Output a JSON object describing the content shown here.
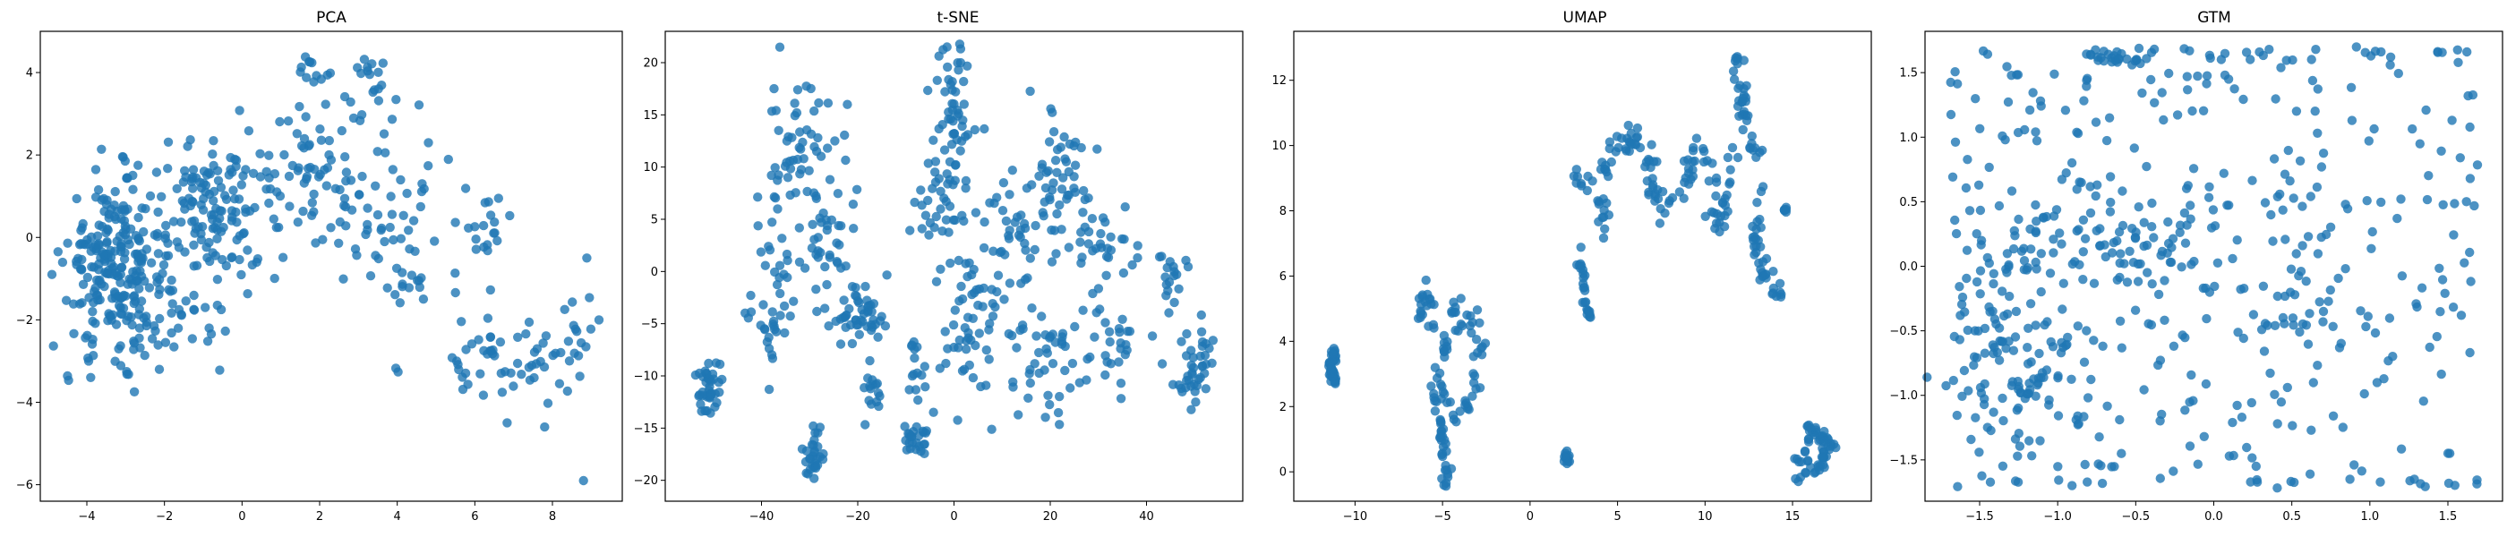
{
  "chart_data": [
    {
      "type": "scatter",
      "title": "PCA",
      "color": "#1f77b4",
      "xlim": [
        -5.2,
        9.8
      ],
      "ylim": [
        -6.4,
        5.0
      ],
      "xticks": [
        -4,
        -2,
        0,
        2,
        4,
        6,
        8
      ],
      "yticks": [
        -6,
        -4,
        -2,
        0,
        2,
        4
      ],
      "clusters": [
        {
          "cx": -3.3,
          "cy": -0.6,
          "sx": 0.6,
          "sy": 1.0,
          "n": 220
        },
        {
          "cx": -0.8,
          "cy": 0.6,
          "sx": 0.8,
          "sy": 0.8,
          "n": 120
        },
        {
          "cx": 2.0,
          "cy": 1.6,
          "sx": 1.3,
          "sy": 1.0,
          "n": 110
        },
        {
          "cx": -2.2,
          "cy": -1.9,
          "sx": 1.0,
          "sy": 0.6,
          "n": 60
        },
        {
          "cx": 3.3,
          "cy": 3.8,
          "sx": 0.3,
          "sy": 0.4,
          "n": 14
        },
        {
          "cx": 1.8,
          "cy": 4.2,
          "sx": 0.25,
          "sy": 0.3,
          "n": 10
        },
        {
          "cx": 6.2,
          "cy": 0.2,
          "sx": 0.4,
          "sy": 0.5,
          "n": 20
        },
        {
          "cx": 4.0,
          "cy": -0.5,
          "sx": 0.7,
          "sy": 0.9,
          "n": 40
        },
        {
          "cx": 6.8,
          "cy": -3.0,
          "sx": 1.1,
          "sy": 0.5,
          "n": 60
        },
        {
          "cx": 8.8,
          "cy": -1.8,
          "sx": 0.4,
          "sy": 0.8,
          "n": 10
        }
      ],
      "points": [
        [
          8.8,
          -5.9
        ],
        [
          7.8,
          -4.6
        ],
        [
          -4.9,
          -0.9
        ],
        [
          -3.9,
          -3.4
        ],
        [
          9.2,
          -2.0
        ]
      ]
    },
    {
      "type": "scatter",
      "title": "t-SNE",
      "color": "#1f77b4",
      "xlim": [
        -60,
        60
      ],
      "ylim": [
        -22,
        23
      ],
      "xticks": [
        -40,
        -20,
        0,
        20,
        40
      ],
      "yticks": [
        -20,
        -15,
        -10,
        -5,
        0,
        5,
        10,
        15,
        20
      ],
      "clusters": [
        {
          "cx": -51,
          "cy": -11,
          "sx": 1.2,
          "sy": 1.3,
          "n": 40
        },
        {
          "cx": -37,
          "cy": -2,
          "sx": 2.2,
          "sy": 4.0,
          "n": 45
        },
        {
          "cx": -32,
          "cy": 12,
          "sx": 4.0,
          "sy": 3.0,
          "n": 55
        },
        {
          "cx": -26,
          "cy": 2,
          "sx": 3.0,
          "sy": 4.0,
          "n": 40
        },
        {
          "cx": -29,
          "cy": -17.5,
          "sx": 1.0,
          "sy": 1.3,
          "n": 30
        },
        {
          "cx": -20,
          "cy": -4,
          "sx": 3.0,
          "sy": 1.5,
          "n": 45
        },
        {
          "cx": -17,
          "cy": -11,
          "sx": 1.0,
          "sy": 1.5,
          "n": 15
        },
        {
          "cx": -8,
          "cy": -9,
          "sx": 1.0,
          "sy": 2.0,
          "n": 15
        },
        {
          "cx": -8,
          "cy": -16,
          "sx": 1.3,
          "sy": 1.0,
          "n": 25
        },
        {
          "cx": 0,
          "cy": 15,
          "sx": 2.0,
          "sy": 4.0,
          "n": 55
        },
        {
          "cx": -3,
          "cy": 7,
          "sx": 2.5,
          "sy": 2.0,
          "n": 30
        },
        {
          "cx": 4,
          "cy": -5,
          "sx": 4.0,
          "sy": 4.0,
          "n": 60
        },
        {
          "cx": 12,
          "cy": 3,
          "sx": 3.0,
          "sy": 4.0,
          "n": 40
        },
        {
          "cx": 22,
          "cy": 9,
          "sx": 3.0,
          "sy": 4.0,
          "n": 50
        },
        {
          "cx": 19,
          "cy": -9,
          "sx": 3.0,
          "sy": 3.0,
          "n": 40
        },
        {
          "cx": 30,
          "cy": 2,
          "sx": 3.0,
          "sy": 3.0,
          "n": 30
        },
        {
          "cx": 33,
          "cy": -6,
          "sx": 3.0,
          "sy": 3.0,
          "n": 30
        },
        {
          "cx": 45,
          "cy": 0,
          "sx": 2.0,
          "sy": 3.0,
          "n": 20
        },
        {
          "cx": 50,
          "cy": -9,
          "sx": 2.0,
          "sy": 2.0,
          "n": 40
        }
      ],
      "points": []
    },
    {
      "type": "scatter",
      "title": "UMAP",
      "color": "#1f77b4",
      "xlim": [
        -13.5,
        19.5
      ],
      "ylim": [
        -0.9,
        13.5
      ],
      "xticks": [
        -10,
        -5,
        0,
        5,
        10,
        15
      ],
      "yticks": [
        0,
        2,
        4,
        6,
        8,
        10,
        12
      ],
      "paths": [
        {
          "n": 45,
          "jitter": 0.12,
          "pts": [
            [
              -11.2,
              3.7
            ],
            [
              -11.4,
              3.2
            ],
            [
              -11.2,
              2.6
            ]
          ]
        },
        {
          "n": 80,
          "jitter": 0.18,
          "pts": [
            [
              -6.5,
              4.2
            ],
            [
              -6.0,
              5.5
            ],
            [
              -5.5,
              4.5
            ],
            [
              -4.2,
              4.8
            ],
            [
              -3.2,
              4.7
            ],
            [
              -2.8,
              3.8
            ],
            [
              -3.2,
              2.4
            ],
            [
              -4.0,
              1.8
            ],
            [
              -5.0,
              2.2
            ],
            [
              -5.2,
              3.3
            ],
            [
              -4.5,
              4.2
            ],
            [
              -3.8,
              4.5
            ]
          ]
        },
        {
          "n": 35,
          "jitter": 0.12,
          "pts": [
            [
              -5.8,
              2.8
            ],
            [
              -5.2,
              1.8
            ],
            [
              -5.0,
              1.0
            ],
            [
              -4.8,
              0.2
            ],
            [
              -4.8,
              -0.6
            ]
          ]
        },
        {
          "n": 12,
          "jitter": 0.08,
          "pts": [
            [
              2.0,
              0.5
            ],
            [
              2.2,
              0.2
            ]
          ]
        },
        {
          "n": 25,
          "jitter": 0.1,
          "pts": [
            [
              2.8,
              7.0
            ],
            [
              3.0,
              6.0
            ],
            [
              3.2,
              5.0
            ],
            [
              3.4,
              4.8
            ]
          ]
        },
        {
          "n": 200,
          "jitter": 0.22,
          "pts": [
            [
              2.5,
              9.1
            ],
            [
              3.5,
              8.8
            ],
            [
              4.2,
              7.8
            ],
            [
              4.0,
              9.4
            ],
            [
              5.0,
              9.8
            ],
            [
              6.0,
              10.4
            ],
            [
              7.0,
              9.5
            ],
            [
              7.0,
              8.6
            ],
            [
              8.0,
              8.0
            ],
            [
              9.0,
              8.6
            ],
            [
              9.0,
              9.5
            ],
            [
              9.8,
              10.2
            ],
            [
              10.5,
              9.0
            ],
            [
              11.0,
              8.0
            ],
            [
              10.5,
              7.5
            ],
            [
              11.3,
              8.8
            ],
            [
              12.0,
              10.5
            ],
            [
              12.0,
              11.5
            ],
            [
              11.8,
              12.9
            ],
            [
              12.5,
              10.2
            ],
            [
              13.3,
              9.0
            ],
            [
              13.0,
              7.8
            ],
            [
              13.0,
              6.5
            ],
            [
              13.5,
              5.8
            ],
            [
              14.3,
              5.3
            ]
          ]
        },
        {
          "n": 6,
          "jitter": 0.06,
          "pts": [
            [
              14.5,
              8.0
            ],
            [
              14.6,
              8.1
            ]
          ]
        },
        {
          "n": 60,
          "jitter": 0.15,
          "pts": [
            [
              15.1,
              0.0
            ],
            [
              15.8,
              0.5
            ],
            [
              16.0,
              1.5
            ],
            [
              16.5,
              1.0
            ],
            [
              17.2,
              0.8
            ],
            [
              16.5,
              0.2
            ],
            [
              15.5,
              -0.1
            ]
          ]
        }
      ],
      "points": []
    },
    {
      "type": "scatter",
      "title": "GTM",
      "color": "#1f77b4",
      "xlim": [
        -1.85,
        1.85
      ],
      "ylim": [
        -1.82,
        1.82
      ],
      "xticks": [
        -1.5,
        -1.0,
        -0.5,
        0.0,
        0.5,
        1.0,
        1.5
      ],
      "yticks": [
        -1.5,
        -1.0,
        -0.5,
        0.0,
        0.5,
        1.0,
        1.5
      ],
      "tick_decimals": 1,
      "uniform": {
        "n": 380,
        "xr": [
          -1.7,
          1.7
        ],
        "yr": [
          -1.7,
          1.7
        ]
      },
      "clusters": [
        {
          "cx": -1.3,
          "cy": -0.7,
          "sx": 0.2,
          "sy": 0.35,
          "n": 80
        },
        {
          "cx": -0.8,
          "cy": 0.2,
          "sx": 0.25,
          "sy": 0.3,
          "n": 40
        },
        {
          "cx": -0.5,
          "cy": 0.1,
          "sx": 0.2,
          "sy": 0.2,
          "n": 25
        },
        {
          "cx": -1.2,
          "cy": 0.05,
          "sx": 0.08,
          "sy": 0.1,
          "n": 12
        },
        {
          "cx": 0.6,
          "cy": -0.45,
          "sx": 0.2,
          "sy": 0.12,
          "n": 20
        }
      ],
      "lines": [
        {
          "pts": [
            [
              -0.9,
              1.65
            ],
            [
              -0.5,
              1.6
            ]
          ],
          "n": 22,
          "jitter": 0.025
        },
        {
          "pts": [
            [
              -1.65,
              1.65
            ],
            [
              1.7,
              1.65
            ]
          ],
          "n": 18,
          "jitter": 0.02
        },
        {
          "pts": [
            [
              -1.65,
              -1.68
            ],
            [
              1.6,
              -1.68
            ]
          ],
          "n": 14,
          "jitter": 0.02
        }
      ],
      "points": []
    }
  ]
}
